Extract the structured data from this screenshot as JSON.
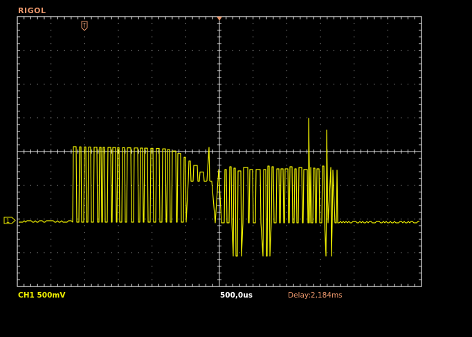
{
  "header": {
    "brand": "RIGOL"
  },
  "status_bar": {
    "channel_label": "CH1",
    "volts_per_div": "500mV",
    "timebase": "500,0us",
    "delay": "Delay:2,184ms"
  },
  "markers": {
    "trigger_marker": "T",
    "channel_marker": "1"
  },
  "display": {
    "grid_divisions_x": 12,
    "grid_divisions_y": 8,
    "grid_color": "#e6e6e6",
    "trace_color": "#f0f000",
    "accent_color": "#e8956a"
  }
}
